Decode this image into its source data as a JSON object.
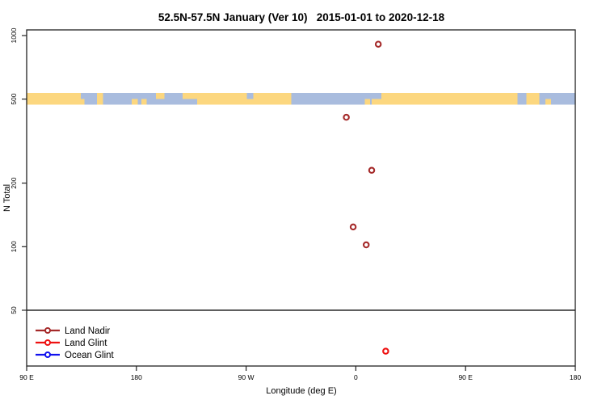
{
  "title": "52.5N-57.5N January (Ver 10)   2015-01-01 to 2020-12-18",
  "axes": {
    "x_label": "Longitude (deg E)",
    "y_label": "N Total"
  },
  "chart_data": {
    "type": "scatter",
    "title": "52.5N-57.5N January (Ver 10)   2015-01-01 to 2020-12-18",
    "xlabel": "Longitude (deg E)",
    "ylabel": "N Total",
    "y_scale": "log10",
    "ylim": [
      30,
      1100
    ],
    "grid": false,
    "x_axis": {
      "unit": "degrees east, axis unwrapped 90E to 180 to 90W to 0 to 90E to 180",
      "range_deg": [
        90,
        540
      ],
      "ticks": [
        {
          "label": "90 E",
          "deg": 90
        },
        {
          "label": "180",
          "deg": 180
        },
        {
          "label": "90 W",
          "deg": 270
        },
        {
          "label": "0",
          "deg": 360
        },
        {
          "label": "90 E",
          "deg": 450
        },
        {
          "label": "180",
          "deg": 540
        }
      ]
    },
    "y_axis": {
      "ticks": [
        1000,
        500,
        200,
        100,
        50
      ]
    },
    "series": [
      {
        "name": "Land Nadir",
        "color": "#A52A2A",
        "marker": "open-circle",
        "points": [
          {
            "x_deg": 378.4,
            "n": 910
          },
          {
            "x_deg": 352.2,
            "n": 410
          },
          {
            "x_deg": 373.0,
            "n": 230
          },
          {
            "x_deg": 357.8,
            "n": 124
          },
          {
            "x_deg": 368.5,
            "n": 102
          }
        ]
      },
      {
        "name": "Land Glint",
        "color": "#EE1111",
        "marker": "open-circle",
        "points": [
          {
            "x_deg": 384.5,
            "n": 32
          }
        ]
      },
      {
        "name": "Ocean Glint",
        "color": "#1111EE",
        "marker": "open-circle",
        "points": []
      }
    ],
    "reference_line": {
      "n": 50,
      "color": "#4D4D4D"
    },
    "map_strip": {
      "description": "land/ocean strip drawn across the plot centered at N=500",
      "n_center": 500,
      "land_color": "#FCD77F",
      "ocean_color": "#A9BCDE",
      "land_segments": [
        {
          "from_deg": 90,
          "to_deg": 134.5,
          "part": "full"
        },
        {
          "from_deg": 134.5,
          "to_deg": 137.5,
          "part": "bottom"
        },
        {
          "from_deg": 147.5,
          "to_deg": 152.5,
          "part": "full"
        },
        {
          "from_deg": 176,
          "to_deg": 181,
          "part": "bottom"
        },
        {
          "from_deg": 184,
          "to_deg": 188.5,
          "part": "bottom"
        },
        {
          "from_deg": 196,
          "to_deg": 203,
          "part": "top"
        },
        {
          "from_deg": 218,
          "to_deg": 230,
          "part": "top"
        },
        {
          "from_deg": 230,
          "to_deg": 270.5,
          "part": "full"
        },
        {
          "from_deg": 270.5,
          "to_deg": 276,
          "part": "bottom"
        },
        {
          "from_deg": 276,
          "to_deg": 307,
          "part": "full"
        },
        {
          "from_deg": 367.5,
          "to_deg": 371.5,
          "part": "bottom"
        },
        {
          "from_deg": 373,
          "to_deg": 381,
          "part": "bottom"
        },
        {
          "from_deg": 381,
          "to_deg": 492.5,
          "part": "full"
        },
        {
          "from_deg": 500,
          "to_deg": 510.5,
          "part": "full"
        },
        {
          "from_deg": 515.5,
          "to_deg": 520,
          "part": "bottom"
        }
      ]
    },
    "legend": {
      "position": "bottom-left",
      "items": [
        "Land Nadir",
        "Land Glint",
        "Ocean Glint"
      ]
    }
  }
}
